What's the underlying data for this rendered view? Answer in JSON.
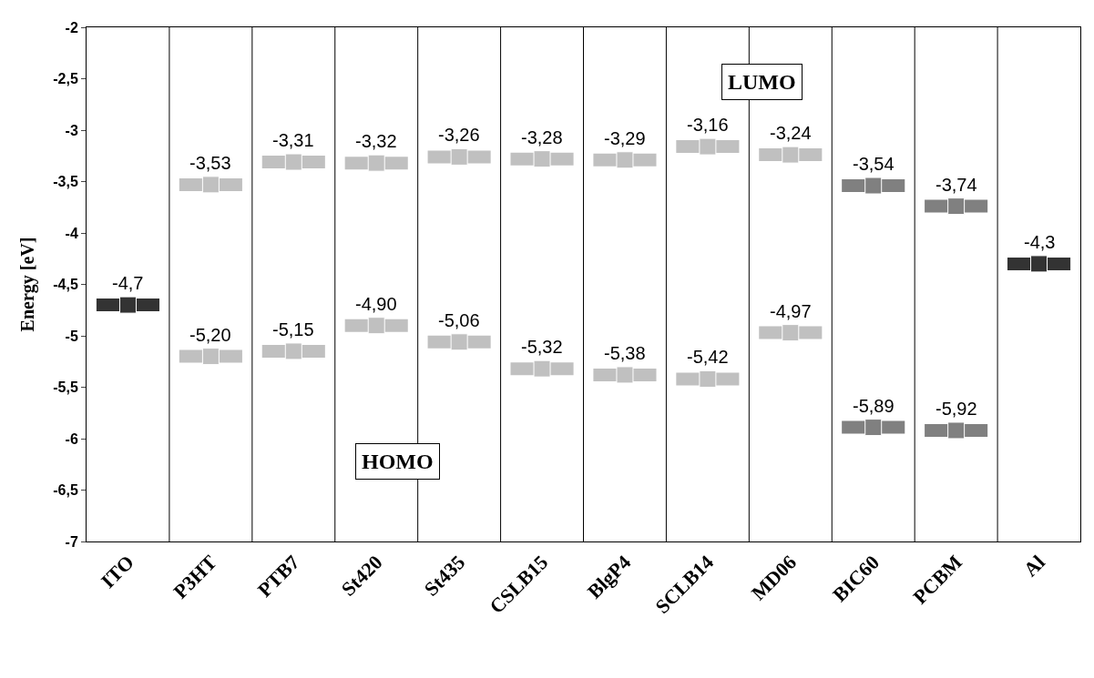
{
  "chart_data": {
    "type": "scatter",
    "ylabel": "Energy [eV]",
    "categories": [
      "ITO",
      "P3HT",
      "PTB7",
      "St420",
      "St435",
      "CSLB15",
      "BlgP4",
      "SCLB14",
      "MD06",
      "BIC60",
      "PCBM",
      "Al"
    ],
    "series": [
      {
        "color": "#333333",
        "values": [
          -4.7,
          null,
          null,
          null,
          null,
          null,
          null,
          null,
          null,
          null,
          null,
          -4.3
        ],
        "value_labels": [
          "-4,7",
          null,
          null,
          null,
          null,
          null,
          null,
          null,
          null,
          null,
          null,
          "-4,3"
        ]
      },
      {
        "color": "#c0c0c0",
        "values": [
          null,
          -3.53,
          -3.31,
          -3.32,
          -3.26,
          -3.28,
          -3.29,
          -3.16,
          -3.24,
          null,
          null,
          null
        ],
        "value_labels": [
          null,
          "-3,53",
          "-3,31",
          "-3,32",
          "-3,26",
          "-3,28",
          "-3,29",
          "-3,16",
          "-3,24",
          null,
          null,
          null
        ]
      },
      {
        "color": "#c0c0c0",
        "values": [
          null,
          -5.2,
          -5.15,
          -4.9,
          -5.06,
          -5.32,
          -5.38,
          -5.42,
          -4.97,
          null,
          null,
          null
        ],
        "value_labels": [
          null,
          "-5,20",
          "-5,15",
          "-4,90",
          "-5,06",
          "-5,32",
          "-5,38",
          "-5,42",
          "-4,97",
          null,
          null,
          null
        ]
      },
      {
        "color": "#808080",
        "values": [
          null,
          null,
          null,
          null,
          null,
          null,
          null,
          null,
          null,
          -3.54,
          -3.74,
          null
        ],
        "value_labels": [
          null,
          null,
          null,
          null,
          null,
          null,
          null,
          null,
          null,
          "-3,54",
          "-3,74",
          null
        ]
      },
      {
        "color": "#808080",
        "values": [
          null,
          null,
          null,
          null,
          null,
          null,
          null,
          null,
          null,
          -5.89,
          -5.92,
          null
        ],
        "value_labels": [
          null,
          null,
          null,
          null,
          null,
          null,
          null,
          null,
          null,
          "-5,89",
          "-5,92",
          null
        ]
      }
    ],
    "ylim": [
      -7,
      -2
    ],
    "yticks": [
      -2,
      {
        "value": -2.5,
        "label": "-2,5"
      },
      -3,
      {
        "value": -3.5,
        "label": "-3,5"
      },
      -4,
      {
        "value": -4.5,
        "label": "-4,5"
      },
      -5,
      {
        "value": -5.5,
        "label": "-5,5"
      },
      -6,
      {
        "value": -6.5,
        "label": "-6,5"
      },
      -7
    ],
    "grid": "x",
    "marker": "square",
    "annotations": [
      "HOMO",
      "LUMO"
    ]
  }
}
